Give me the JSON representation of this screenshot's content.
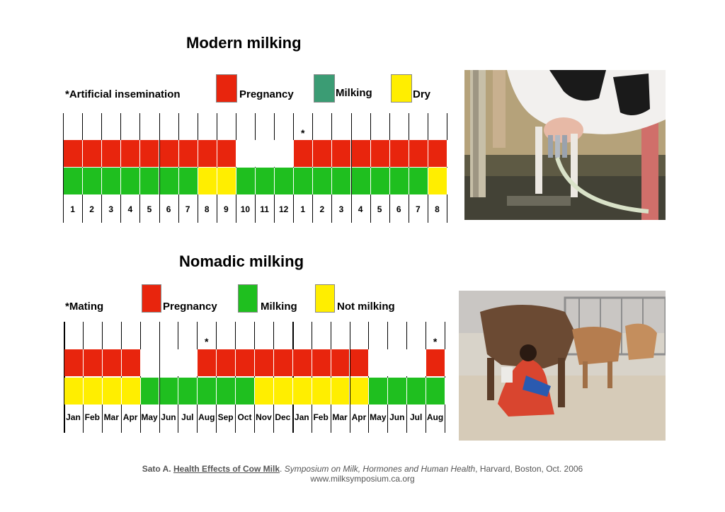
{
  "colors": {
    "pregnancy": "#e8250d",
    "milking_modern": "#3b9c74",
    "milking": "#1fbf1f",
    "dry": "#ffee00",
    "empty": "#ffffff"
  },
  "modern": {
    "title": "Modern milking",
    "legend": {
      "note": "*Artificial insemination",
      "pregnancy": "Pregnancy",
      "milking": "Milking",
      "dry": "Dry"
    },
    "ticks": [
      "1",
      "2",
      "3",
      "4",
      "5",
      "6",
      "7",
      "8",
      "9",
      "10",
      "11",
      "12",
      "1",
      "2",
      "3",
      "4",
      "5",
      "6",
      "7",
      "8"
    ],
    "pregnancy_row": [
      "P",
      "P",
      "P",
      "P",
      "P",
      "P",
      "P",
      "P",
      "P",
      "E",
      "E",
      "E",
      "P",
      "P",
      "P",
      "P",
      "P",
      "P",
      "P",
      "P"
    ],
    "milking_row": [
      "M",
      "M",
      "M",
      "M",
      "M",
      "M",
      "M",
      "D",
      "D",
      "M",
      "M",
      "M",
      "M",
      "M",
      "M",
      "M",
      "M",
      "M",
      "M",
      "D"
    ],
    "star_markers": [
      12
    ],
    "star_symbol": "*"
  },
  "nomadic": {
    "title": "Nomadic milking",
    "legend": {
      "note": "*Mating",
      "pregnancy": "Pregnancy",
      "milking": "Milking",
      "not_milking": "Not milking"
    },
    "ticks": [
      "Jan",
      "Feb",
      "Mar",
      "Apr",
      "May",
      "Jun",
      "Jul",
      "Aug",
      "Sep",
      "Oct",
      "Nov",
      "Dec",
      "Jan",
      "Feb",
      "Mar",
      "Apr",
      "May",
      "Jun",
      "Jul",
      "Aug"
    ],
    "pregnancy_row": [
      "P",
      "P",
      "P",
      "P",
      "E",
      "E",
      "E",
      "P",
      "P",
      "P",
      "P",
      "P",
      "P",
      "P",
      "P",
      "P",
      "E",
      "E",
      "E",
      "P"
    ],
    "milking_row": [
      "N",
      "N",
      "N",
      "N",
      "M",
      "M",
      "M",
      "M",
      "M",
      "M",
      "N",
      "N",
      "N",
      "N",
      "N",
      "N",
      "M",
      "M",
      "M",
      "M"
    ],
    "star_markers": [
      7,
      19
    ],
    "star_symbol": "*"
  },
  "citation": {
    "author": "Sato A.",
    "work": "Health Effects of Cow Milk",
    "venue": "Symposium on Milk, Hormones and Human Health",
    "details": ", Harvard, Boston, Oct. 2006",
    "url": "www.milksymposium.ca.org"
  }
}
